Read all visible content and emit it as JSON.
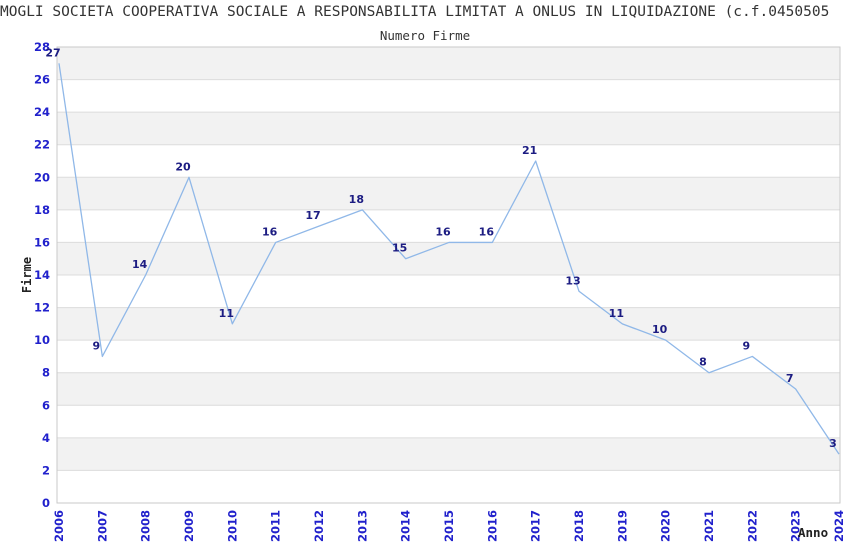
{
  "chart_data": {
    "type": "line",
    "title": "MOGLI SOCIETA COOPERATIVA SOCIALE A RESPONSABILITA LIMITAT A ONLUS IN LIQUIDAZIONE (c.f.0450505",
    "subtitle": "Numero Firme",
    "xlabel": "Anno",
    "ylabel": "Firme",
    "x": [
      2006,
      2007,
      2008,
      2009,
      2010,
      2011,
      2012,
      2013,
      2014,
      2015,
      2016,
      2017,
      2018,
      2019,
      2020,
      2021,
      2022,
      2023,
      2024
    ],
    "values": [
      27,
      9,
      14,
      20,
      11,
      16,
      17,
      18,
      15,
      16,
      16,
      21,
      13,
      11,
      10,
      8,
      9,
      7,
      3
    ],
    "ylim": [
      0,
      28
    ],
    "ytick_step": 2,
    "grid": "horizontal alternating bands every 2 units",
    "legend": "none",
    "colors": {
      "line": "#90b8e8",
      "data_label": "#1c1c82",
      "tick_label": "#2121cc",
      "band_gray": "#f2f2f2",
      "band_white": "#ffffff",
      "grid_line": "#dcdcdc",
      "plot_border": "#c9c9c9",
      "title_text": "#333333",
      "axis_title_text": "#222222"
    }
  }
}
